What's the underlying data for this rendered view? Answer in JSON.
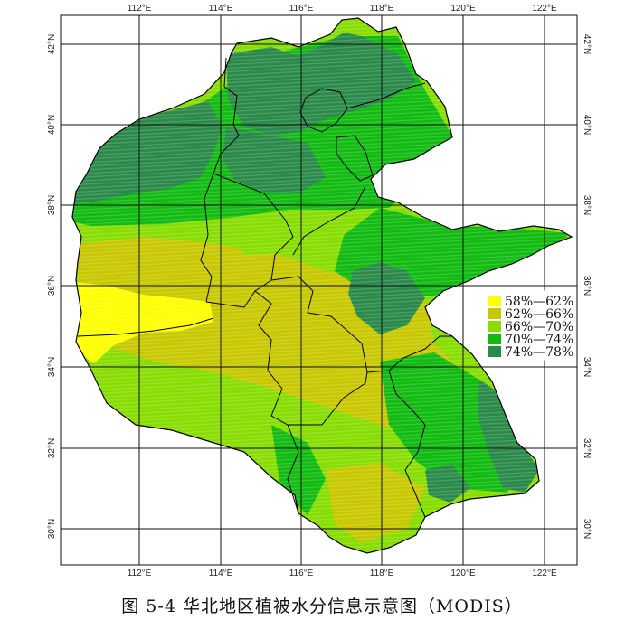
{
  "map": {
    "lon_ticks": [
      "112°E",
      "114°E",
      "116°E",
      "118°E",
      "120°E",
      "122°E"
    ],
    "lat_ticks": [
      "42°N",
      "40°N",
      "38°N",
      "36°N",
      "34°N",
      "32°N",
      "30°N"
    ],
    "colors": {
      "c58": "#ffff00",
      "c62": "#c8c800",
      "c66": "#88dd00",
      "c70": "#11bb11",
      "c74": "#2a8a4a",
      "grid": "#111111",
      "boundary": "#000000"
    }
  },
  "legend": {
    "items": [
      {
        "label": "58%—62%",
        "color": "#ffff00"
      },
      {
        "label": "62%—66%",
        "color": "#c8c800"
      },
      {
        "label": "66%—70%",
        "color": "#88dd00"
      },
      {
        "label": "70%—74%",
        "color": "#11bb11"
      },
      {
        "label": "74%—78%",
        "color": "#2a8a4a"
      }
    ]
  },
  "caption": "图 5-4  华北地区植被水分信息示意图（MODIS）"
}
